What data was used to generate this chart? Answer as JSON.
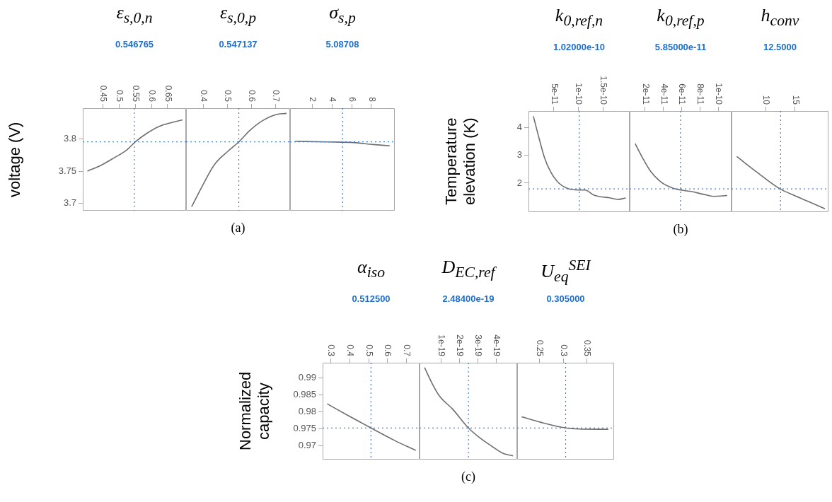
{
  "chart_data": [
    {
      "type": "line",
      "title": "ε$_{s,0,n}$",
      "subtitle": "0.546765",
      "ylabel": "voltage (V)",
      "color": "#6e6e6e",
      "x": [
        0.402,
        0.444,
        0.483,
        0.522,
        0.55,
        0.585,
        0.624,
        0.663,
        0.696
      ],
      "values": [
        3.75,
        3.759,
        3.77,
        3.782,
        3.795,
        3.808,
        3.819,
        3.825,
        3.829
      ],
      "xlim": [
        0.3875,
        0.707
      ],
      "xticks": [
        0.45,
        0.5,
        0.55,
        0.6,
        0.65
      ],
      "ylim": [
        3.689,
        3.847
      ],
      "yticks": [
        3.7,
        3.75,
        3.8
      ],
      "ref_lines": [
        {
          "axis": "x",
          "value": 0.546765,
          "color": "#3a7bd5",
          "line_style": "dotted"
        },
        {
          "axis": "y",
          "value": 3.795,
          "color": "#3a7bd5",
          "line_style": "dotted"
        }
      ]
    },
    {
      "type": "line",
      "title": "ε$_{s,0,p}$",
      "subtitle": "0.547137",
      "annotations": [
        "(a)"
      ],
      "tick_labels": "x",
      "color": "#6e6e6e",
      "x": [
        0.351,
        0.394,
        0.446,
        0.5,
        0.547,
        0.594,
        0.647,
        0.7,
        0.745
      ],
      "values": [
        3.695,
        3.726,
        3.76,
        3.78,
        3.795,
        3.813,
        3.828,
        3.837,
        3.839
      ],
      "xlim": [
        0.328,
        0.76
      ],
      "xticks": [
        0.4,
        0.5,
        0.6,
        0.7
      ],
      "ylim": [
        3.689,
        3.847
      ],
      "yticks": [
        3.7,
        3.75,
        3.8
      ],
      "ref_lines": [
        {
          "axis": "x",
          "value": 0.547137,
          "color": "#3a7bd5",
          "line_style": "dotted"
        },
        {
          "axis": "y",
          "value": 3.795,
          "color": "#3a7bd5",
          "line_style": "dotted"
        }
      ]
    },
    {
      "type": "line",
      "title": "σ$_{s,p}$",
      "subtitle": "5.08708",
      "tick_labels": "x",
      "color": "#6e6e6e",
      "x": [
        0.26,
        3.59,
        6.15,
        8.2,
        9.87
      ],
      "values": [
        3.796,
        3.795,
        3.794,
        3.791,
        3.789
      ],
      "xlim": [
        -0.26,
        10.38
      ],
      "xticks": [
        2,
        4,
        6,
        8
      ],
      "ylim": [
        3.689,
        3.847
      ],
      "yticks": [
        3.7,
        3.75,
        3.8
      ],
      "ref_lines": [
        {
          "axis": "x",
          "value": 5.08708,
          "color": "#3a7bd5",
          "line_style": "dotted"
        },
        {
          "axis": "y",
          "value": 3.795,
          "color": "#3a7bd5",
          "line_style": "dotted"
        }
      ]
    },
    {
      "type": "line",
      "title": "k$_{0,ref,n}$",
      "subtitle": "1.02000e-10",
      "ylabel": "Temperature elevation (K)",
      "color": "#6e6e6e",
      "x": [
        8e-12,
        2e-11,
        3.1e-11,
        4.3e-11,
        5.9e-11,
        7.6e-11,
        1e-10,
        1.14e-10,
        1.31e-10,
        1.48e-10,
        1.64e-10,
        1.81e-10,
        1.97e-10
      ],
      "values": [
        4.42,
        3.6,
        2.91,
        2.42,
        2.02,
        1.82,
        1.75,
        1.75,
        1.57,
        1.5,
        1.47,
        1.41,
        1.46
      ],
      "xlim": [
        -2e-12,
        2.05e-10
      ],
      "xticks": [
        5e-11,
        1e-10,
        1.5e-10
      ],
      "ylim": [
        0.95,
        4.61
      ],
      "yticks": [
        2,
        3,
        4
      ],
      "ref_lines": [
        {
          "axis": "x",
          "value": 1.02e-10,
          "color": "#3a7bd5",
          "line_style": "dotted"
        },
        {
          "axis": "y",
          "value": 1.79,
          "color": "#3a7bd5",
          "line_style": "dotted"
        }
      ]
    },
    {
      "type": "line",
      "title": "k$_{0,ref,p}$",
      "subtitle": "5.85000e-11",
      "annotations": [
        "(b)"
      ],
      "tick_labels": "x",
      "color": "#6e6e6e",
      "x": [
        9e-12,
        1.7e-11,
        2.6e-11,
        3.8e-11,
        5e-11,
        5.9e-11,
        7.1e-11,
        8.3e-11,
        9.5e-11,
        1.095e-10
      ],
      "values": [
        3.43,
        2.92,
        2.42,
        2.02,
        1.82,
        1.75,
        1.69,
        1.6,
        1.52,
        1.55
      ],
      "xlim": [
        3e-12,
        1.143e-10
      ],
      "xticks": [
        2e-11,
        4e-11,
        6e-11,
        8e-11,
        1e-10
      ],
      "ylim": [
        0.95,
        4.61
      ],
      "yticks": [
        2,
        3,
        4
      ],
      "ref_lines": [
        {
          "axis": "x",
          "value": 5.85e-11,
          "color": "#3a7bd5",
          "line_style": "dotted"
        },
        {
          "axis": "y",
          "value": 1.79,
          "color": "#3a7bd5",
          "line_style": "dotted"
        }
      ]
    },
    {
      "type": "line",
      "title": "h$_{conv}$",
      "subtitle": "12.5000",
      "tick_labels": "x",
      "color": "#6e6e6e",
      "x": [
        5,
        8.3,
        12.4,
        15,
        17.2,
        20.1
      ],
      "values": [
        2.96,
        2.42,
        1.79,
        1.54,
        1.34,
        1.07
      ],
      "xlim": [
        4.1,
        20.7
      ],
      "xticks": [
        10,
        15
      ],
      "ylim": [
        0.95,
        4.61
      ],
      "yticks": [
        2,
        3,
        4
      ],
      "ref_lines": [
        {
          "axis": "x",
          "value": 12.5,
          "color": "#3a7bd5",
          "line_style": "dotted"
        },
        {
          "axis": "y",
          "value": 1.79,
          "color": "#3a7bd5",
          "line_style": "dotted"
        }
      ]
    },
    {
      "type": "line",
      "title": "α$_{iso}$",
      "subtitle": "0.512500",
      "ylabel": "Normalized capacity",
      "color": "#6e6e6e",
      "x": [
        0.28,
        0.393,
        0.512,
        0.635,
        0.75
      ],
      "values": [
        0.9824,
        0.9789,
        0.9753,
        0.9717,
        0.9687
      ],
      "xlim": [
        0.256,
        0.77
      ],
      "xticks": [
        0.3,
        0.4,
        0.5,
        0.6,
        0.7
      ],
      "ylim": [
        0.966,
        0.9945
      ],
      "yticks": [
        0.97,
        0.975,
        0.98,
        0.985,
        0.99
      ],
      "ref_lines": [
        {
          "axis": "x",
          "value": 0.5125,
          "color": "#3a7bd5",
          "line_style": "dotted"
        },
        {
          "axis": "y",
          "value": 0.9753,
          "color": "#3a7bd5",
          "line_style": "dotted"
        }
      ]
    },
    {
      "type": "line",
      "title": "D$_{EC,ref}$",
      "subtitle": "2.48400e-19",
      "annotations": [
        "(c)"
      ],
      "tick_labels": "x",
      "color": "#6e6e6e",
      "x": [
        1.1e-20,
        5.2e-20,
        9.3e-20,
        1.62e-19,
        2.484e-19,
        3.12e-19,
        3.81e-19,
        4.36e-19,
        4.9e-19
      ],
      "values": [
        0.9931,
        0.9884,
        0.9846,
        0.9809,
        0.9753,
        0.9723,
        0.9697,
        0.9678,
        0.9671
      ],
      "xlim": [
        -1.6e-20,
        5.12e-19
      ],
      "xticks": [
        1e-19,
        2e-19,
        3e-19,
        4e-19
      ],
      "ylim": [
        0.966,
        0.9945
      ],
      "yticks": [
        0.97,
        0.975,
        0.98,
        0.985,
        0.99
      ],
      "ref_lines": [
        {
          "axis": "x",
          "value": 2.484e-19,
          "color": "#3a7bd5",
          "line_style": "dotted"
        },
        {
          "axis": "y",
          "value": 0.9753,
          "color": "#3a7bd5",
          "line_style": "dotted"
        }
      ]
    },
    {
      "type": "line",
      "title": "U$_{eq}$$^{SEI}$",
      "subtitle": "0.305000",
      "tick_labels": "x",
      "color": "#6e6e6e",
      "x": [
        0.2125,
        0.252,
        0.305,
        0.333,
        0.395
      ],
      "values": [
        0.9786,
        0.977,
        0.9753,
        0.975,
        0.9749
      ],
      "xlim": [
        0.203,
        0.407
      ],
      "xticks": [
        0.25,
        0.3,
        0.35
      ],
      "ylim": [
        0.966,
        0.9945
      ],
      "yticks": [
        0.97,
        0.975,
        0.98,
        0.985,
        0.99
      ],
      "ref_lines": [
        {
          "axis": "x",
          "value": 0.305,
          "color": "#3a7bd5",
          "line_style": "dotted"
        },
        {
          "axis": "y",
          "value": 0.9753,
          "color": "#3a7bd5",
          "line_style": "dotted"
        }
      ]
    }
  ]
}
